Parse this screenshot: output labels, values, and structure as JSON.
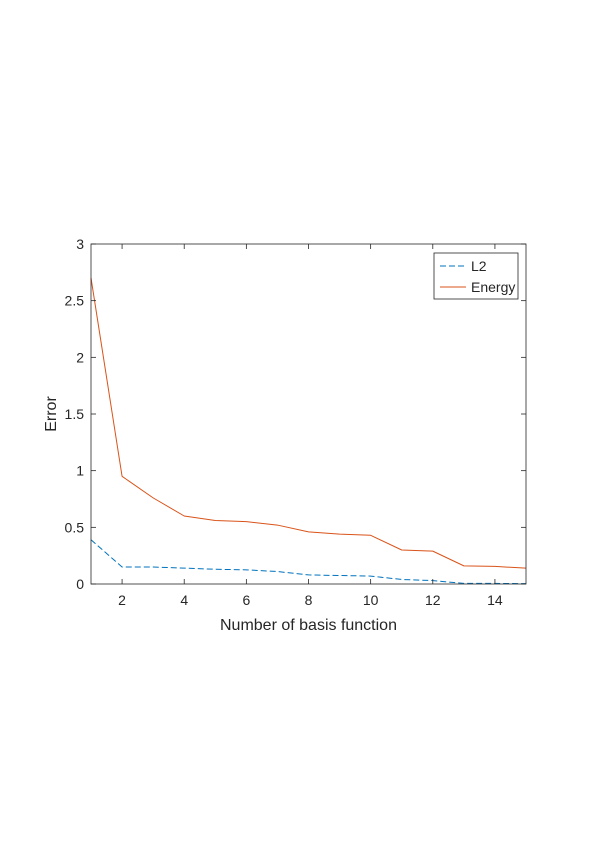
{
  "chart_data": {
    "type": "line",
    "title": "",
    "xlabel": "Number of basis function",
    "ylabel": "Error",
    "xlim": [
      1,
      15
    ],
    "ylim": [
      0,
      3
    ],
    "x_ticks": [
      2,
      4,
      6,
      8,
      10,
      12,
      14
    ],
    "x_tick_labels": [
      "2",
      "4",
      "6",
      "8",
      "10",
      "12",
      "14"
    ],
    "y_ticks": [
      0,
      0.5,
      1,
      1.5,
      2,
      2.5,
      3
    ],
    "y_tick_labels": [
      "0",
      "0.5",
      "1",
      "1.5",
      "2",
      "2.5",
      "3"
    ],
    "grid": false,
    "legend_position": "top-right",
    "x": [
      1,
      2,
      3,
      4,
      5,
      6,
      7,
      8,
      9,
      10,
      11,
      12,
      13,
      14,
      15
    ],
    "series": [
      {
        "name": "L2",
        "color": "#0072BD",
        "line_style": "dashed",
        "values": [
          0.39,
          0.15,
          0.15,
          0.14,
          0.13,
          0.125,
          0.11,
          0.08,
          0.075,
          0.07,
          0.04,
          0.03,
          0.005,
          0.005,
          0.003
        ]
      },
      {
        "name": "Energy",
        "color": "#D95319",
        "line_style": "solid",
        "values": [
          2.7,
          0.95,
          0.76,
          0.6,
          0.56,
          0.55,
          0.52,
          0.46,
          0.44,
          0.43,
          0.3,
          0.29,
          0.16,
          0.155,
          0.14
        ]
      }
    ]
  }
}
